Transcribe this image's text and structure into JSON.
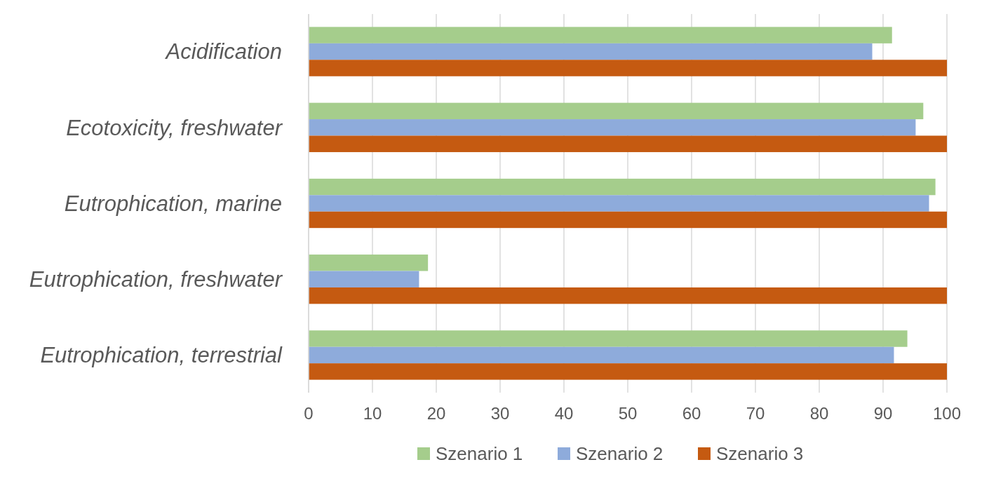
{
  "chart_data": {
    "type": "bar",
    "orientation": "horizontal",
    "categories": [
      "Acidification",
      "Ecotoxicity, freshwater",
      "Eutrophication, marine",
      "Eutrophication, freshwater",
      "Eutrophication, terrestrial"
    ],
    "series": [
      {
        "name": "Szenario 1",
        "color": "#a5cd8c",
        "values": [
          91.4,
          96.3,
          98.2,
          18.7,
          93.8
        ]
      },
      {
        "name": "Szenario 2",
        "color": "#8eabdb",
        "values": [
          88.3,
          95.1,
          97.2,
          17.3,
          91.7
        ]
      },
      {
        "name": "Szenario 3",
        "color": "#c55a11",
        "values": [
          100,
          100,
          100,
          100,
          100
        ]
      }
    ],
    "xlim": [
      0,
      100
    ],
    "xticks": [
      0,
      10,
      20,
      30,
      40,
      50,
      60,
      70,
      80,
      90,
      100
    ],
    "grid": "x",
    "legend": "bottom"
  }
}
